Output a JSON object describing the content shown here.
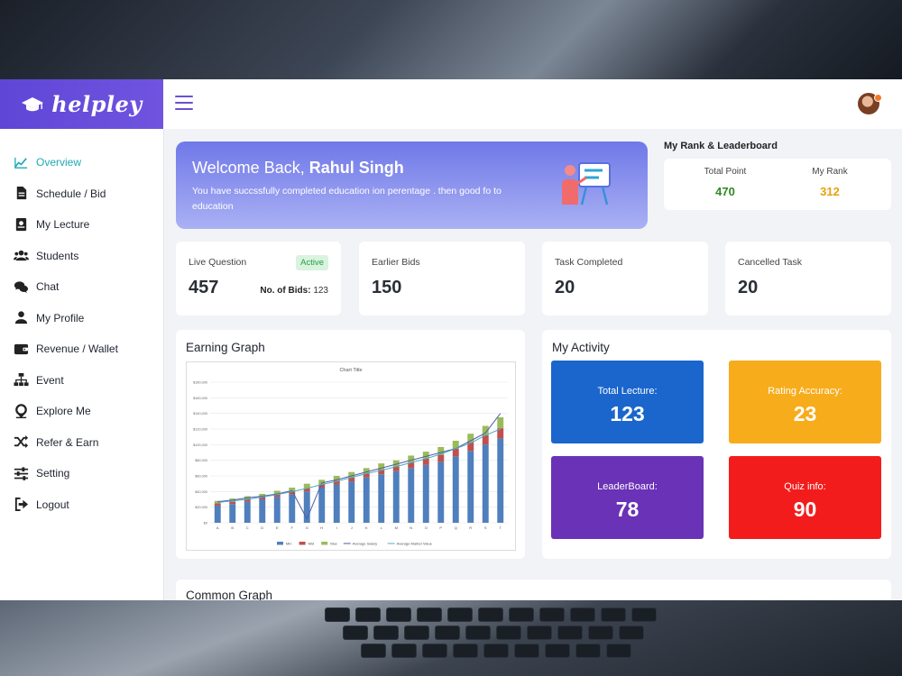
{
  "brand": {
    "name": "helpley"
  },
  "nav": [
    {
      "label": "Overview",
      "icon": "chart-line-icon",
      "active": true
    },
    {
      "label": "Schedule / Bid",
      "icon": "document-icon"
    },
    {
      "label": "My Lecture",
      "icon": "book-icon"
    },
    {
      "label": "Students",
      "icon": "users-icon"
    },
    {
      "label": "Chat",
      "icon": "chat-icon"
    },
    {
      "label": "My Profile",
      "icon": "user-icon"
    },
    {
      "label": "Revenue / Wallet",
      "icon": "wallet-icon"
    },
    {
      "label": "Event",
      "icon": "sitemap-icon"
    },
    {
      "label": "Explore Me",
      "icon": "pin-icon"
    },
    {
      "label": "Refer & Earn",
      "icon": "shuffle-icon"
    },
    {
      "label": "Setting",
      "icon": "sliders-icon"
    },
    {
      "label": "Logout",
      "icon": "logout-icon"
    }
  ],
  "welcome": {
    "greeting": "Welcome Back,",
    "name": "Rahul Singh",
    "message": "You have succssfully completed education ion perentage . then good fo to education"
  },
  "rank": {
    "title": "My Rank & Leaderboard",
    "total_point_label": "Total Point",
    "total_point": "470",
    "my_rank_label": "My Rank",
    "my_rank": "312"
  },
  "stats": {
    "live_question": {
      "label": "Live Question",
      "value": "457",
      "badge": "Active",
      "bids_label": "No. of Bids:",
      "bids_value": "123"
    },
    "earlier_bids": {
      "label": "Earlier Bids",
      "value": "150"
    },
    "task_completed": {
      "label": "Task Completed",
      "value": "20"
    },
    "cancelled_task": {
      "label": "Cancelled Task",
      "value": "20"
    }
  },
  "earning_graph": {
    "title": "Earning Graph"
  },
  "activity": {
    "title": "My Activity",
    "tiles": [
      {
        "label": "Total Lecture:",
        "value": "123",
        "color": "#1a66cc"
      },
      {
        "label": "Rating Accuracy:",
        "value": "23",
        "color": "#f7ac1c"
      },
      {
        "label": "LeaderBoard:",
        "value": "78",
        "color": "#6a32b6"
      },
      {
        "label": "Quiz info:",
        "value": "90",
        "color": "#f31c1c"
      }
    ]
  },
  "common_graph": {
    "title": "Common Graph"
  },
  "colors": {
    "accent": "#6a4fd6",
    "active_nav": "#1fa9b6",
    "green": "#2c8a1e",
    "orange": "#e5a20c"
  },
  "chart_data": {
    "type": "bar",
    "title": "Chart Title",
    "categories": [
      "A",
      "B",
      "C",
      "D",
      "E",
      "F",
      "G",
      "H",
      "I",
      "J",
      "K",
      "L",
      "M",
      "N",
      "O",
      "P",
      "Q",
      "R",
      "S",
      "T"
    ],
    "series": [
      {
        "name": "Min",
        "values": [
          22000,
          24000,
          27000,
          30000,
          33000,
          36000,
          40000,
          45000,
          49000,
          53000,
          58000,
          62000,
          66000,
          70000,
          74000,
          78000,
          85000,
          92000,
          100000,
          108000
        ]
      },
      {
        "name": "Mid",
        "values": [
          3000,
          3000,
          3000,
          3000,
          3000,
          4000,
          4000,
          4000,
          5000,
          5000,
          5000,
          6000,
          6000,
          7000,
          8000,
          9000,
          10000,
          11000,
          12000,
          13000
        ]
      },
      {
        "name": "Max",
        "values": [
          3000,
          4000,
          4000,
          4000,
          5000,
          5000,
          6000,
          6000,
          6000,
          7000,
          7000,
          8000,
          8000,
          9000,
          9000,
          10000,
          10000,
          11000,
          12000,
          14000
        ]
      },
      {
        "name": "Average Salary",
        "values": [
          27000,
          29000,
          32000,
          34000,
          37000,
          41000,
          5000,
          51000,
          55000,
          60000,
          65000,
          70000,
          75000,
          80000,
          85000,
          90000,
          95000,
          105000,
          115000,
          140000
        ]
      },
      {
        "name": "Average Market Value",
        "values": [
          26000,
          28000,
          30000,
          33000,
          36000,
          40000,
          44000,
          49000,
          53000,
          58000,
          63000,
          67000,
          72000,
          77000,
          82000,
          88000,
          95000,
          102000,
          112000,
          120000
        ]
      }
    ],
    "y_ticks": [
      "$0",
      "$20,000",
      "$40,000",
      "$60,000",
      "$80,000",
      "$100,000",
      "$120,000",
      "$140,000",
      "$160,000",
      "$180,000"
    ],
    "ylim": [
      0,
      180000
    ],
    "legend_position": "bottom",
    "series_colors": [
      "#4f7fbd",
      "#c0504d",
      "#9bbb59",
      "#4e5ea8",
      "#4bacc6"
    ]
  }
}
